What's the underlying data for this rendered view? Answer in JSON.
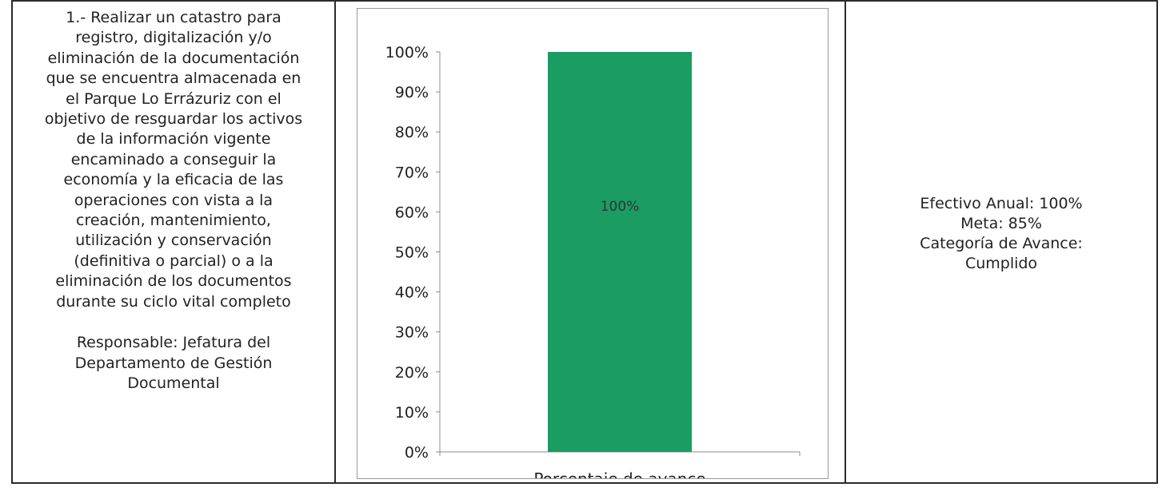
{
  "objective": {
    "description": "1.- Realizar un catastro para\nregistro, digitalización y/o\neliminación de la documentación\nque se encuentra almacenada en\nel Parque Lo Errázuriz con el\nobjetivo de resguardar los activos\nde la información vigente\nencaminado a conseguir la\neconomía y la eficacia de las\noperaciones con vista a la\ncreación, mantenimiento,\nutilización y conservación\n(definitiva o parcial) o a la\neliminación de los documentos\ndurante su ciclo vital completo",
    "responsible": "Responsable: Jefatura del\nDepartamento de Gestión\nDocumental"
  },
  "chart_data": {
    "type": "bar",
    "categories": [
      "Porcentaje de avance"
    ],
    "values": [
      100
    ],
    "data_labels": [
      "100%"
    ],
    "ylim": [
      0,
      100
    ],
    "yticks": [
      "0%",
      "10%",
      "20%",
      "30%",
      "40%",
      "50%",
      "60%",
      "70%",
      "80%",
      "90%",
      "100%"
    ],
    "ytick_values": [
      0,
      10,
      20,
      30,
      40,
      50,
      60,
      70,
      80,
      90,
      100
    ],
    "bar_color": "#1a9c63",
    "grid": false,
    "legend": "none"
  },
  "summary": {
    "efectivo": "Efectivo Anual: 100%",
    "meta": "Meta: 85%",
    "categoria_label": "Categoría de Avance:",
    "categoria_value": "Cumplido"
  }
}
